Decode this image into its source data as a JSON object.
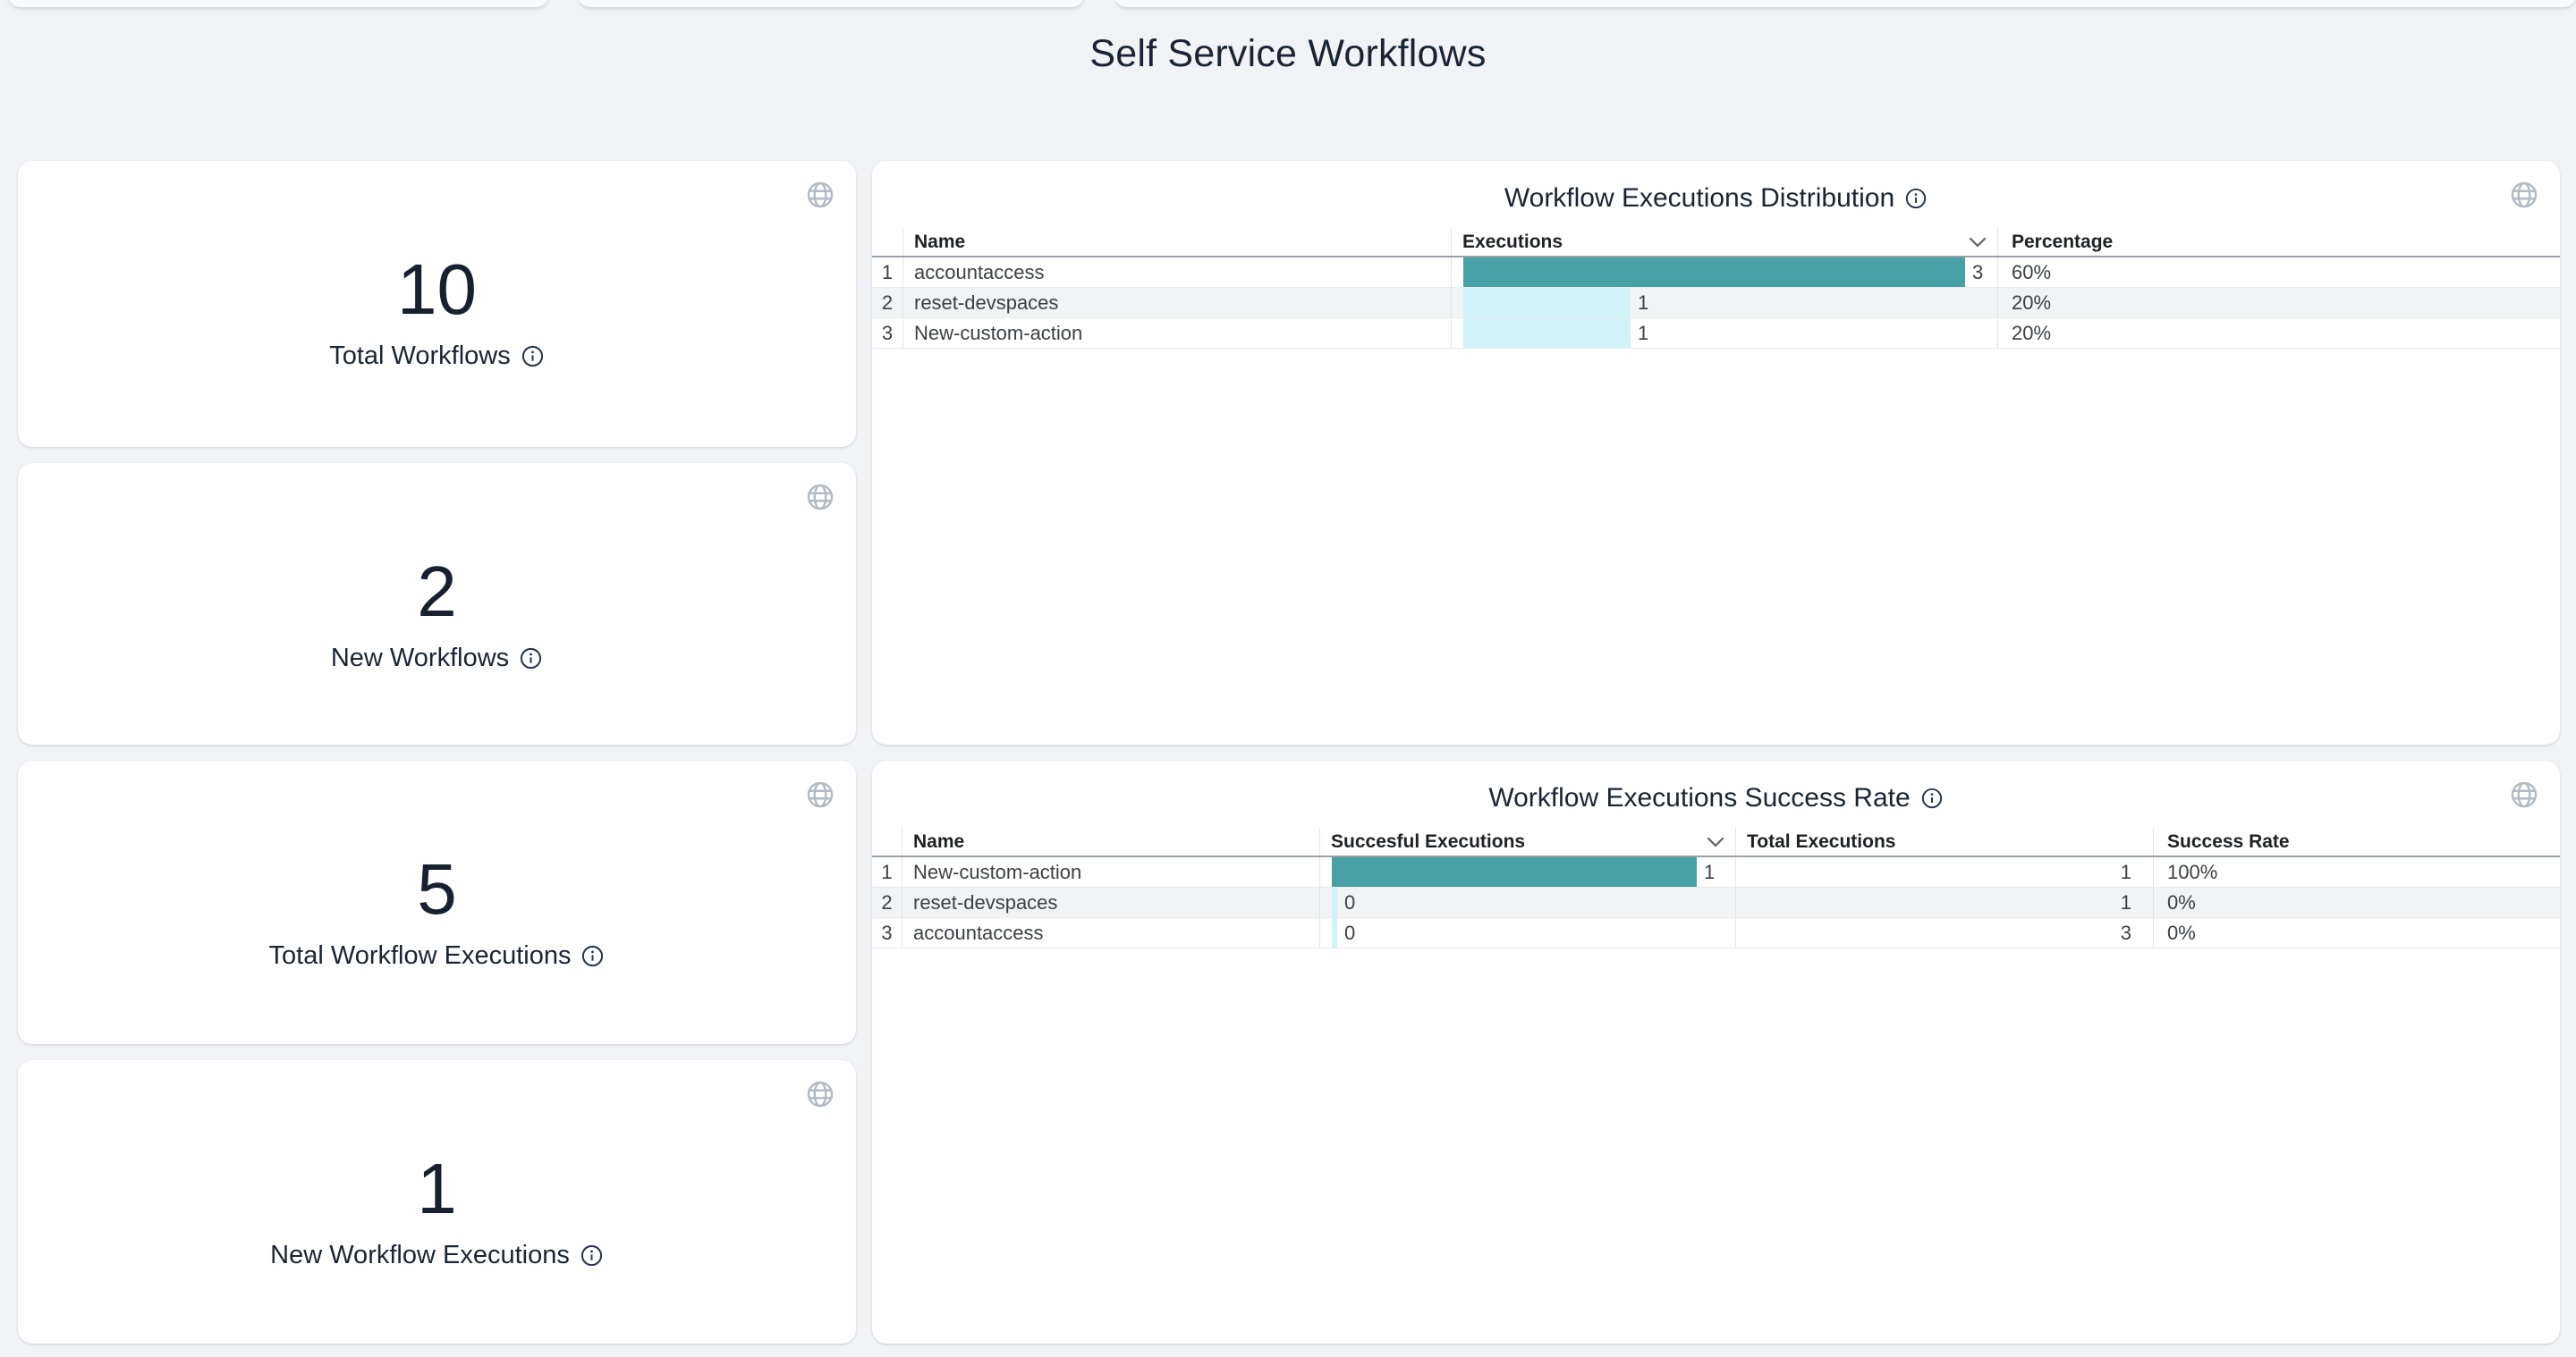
{
  "page": {
    "title": "Self Service Workflows"
  },
  "colors": {
    "accent_teal": "#48a0a7",
    "bar_light": "#cff3f9"
  },
  "stats": [
    {
      "value": "10",
      "label": "Total Workflows"
    },
    {
      "value": "2",
      "label": "New Workflows"
    },
    {
      "value": "5",
      "label": "Total Workflow Executions"
    },
    {
      "value": "1",
      "label": "New Workflow Executions"
    }
  ],
  "tables": {
    "distribution": {
      "title": "Workflow Executions Distribution",
      "columns": {
        "name": "Name",
        "executions": "Executions",
        "percentage": "Percentage"
      },
      "rows": [
        {
          "index": "1",
          "name": "accountaccess",
          "executions": 3,
          "percentage": "60%"
        },
        {
          "index": "2",
          "name": "reset-devspaces",
          "executions": 1,
          "percentage": "20%"
        },
        {
          "index": "3",
          "name": "New-custom-action",
          "executions": 1,
          "percentage": "20%"
        }
      ]
    },
    "success_rate": {
      "title": "Workflow Executions Success Rate",
      "columns": {
        "name": "Name",
        "successful": "Succesful Executions",
        "total": "Total Executions",
        "rate": "Success Rate"
      },
      "rows": [
        {
          "index": "1",
          "name": "New-custom-action",
          "successful": 1,
          "total": 1,
          "rate": "100%"
        },
        {
          "index": "2",
          "name": "reset-devspaces",
          "successful": 0,
          "total": 1,
          "rate": "0%"
        },
        {
          "index": "3",
          "name": "accountaccess",
          "successful": 0,
          "total": 3,
          "rate": "0%"
        }
      ]
    }
  }
}
